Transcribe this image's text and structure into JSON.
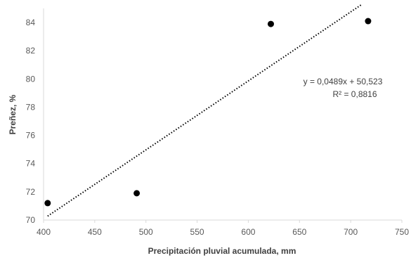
{
  "chart_data": {
    "type": "scatter",
    "title": "",
    "xlabel": "Precipitación pluvial acumulada, mm",
    "ylabel": "Preñez, %",
    "xlim": [
      400,
      750
    ],
    "ylim": [
      70,
      85
    ],
    "xticks": [
      400,
      450,
      500,
      550,
      600,
      650,
      700,
      750
    ],
    "yticks": [
      70,
      72,
      74,
      76,
      78,
      80,
      82,
      84
    ],
    "grid": false,
    "legend": "none",
    "series": [
      {
        "points": [
          {
            "x": 404,
            "y": 71.2
          },
          {
            "x": 491,
            "y": 71.9
          },
          {
            "x": 622,
            "y": 83.9
          },
          {
            "x": 717,
            "y": 84.1
          }
        ],
        "color": "#000000"
      }
    ],
    "trendline": {
      "type": "linear",
      "style": "dotted",
      "color": "#000000",
      "slope": 0.0489,
      "intercept": 50.523,
      "x_start": 404,
      "x_end": 710,
      "equation": "y = 0,0489x + 50,523",
      "r_squared": "R² = 0,8816"
    }
  }
}
